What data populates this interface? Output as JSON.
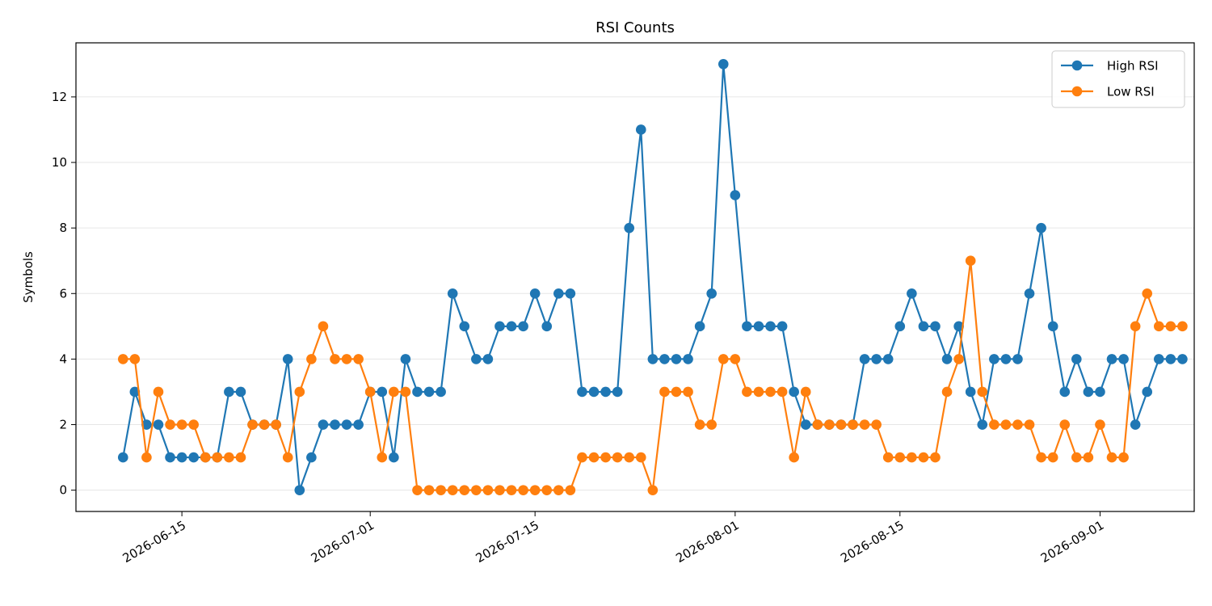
{
  "chart_data": {
    "type": "line",
    "title": "RSI Counts",
    "xlabel": "",
    "ylabel": "Symbols",
    "x_start": "2026-06-10",
    "x_end": "2026-09-05",
    "xlim": [
      "2026-06-06",
      "2026-09-09"
    ],
    "ylim": [
      -0.65,
      13.65
    ],
    "x_ticks": [
      "2026-06-15",
      "2026-07-01",
      "2026-07-15",
      "2026-08-01",
      "2026-08-15",
      "2026-09-01"
    ],
    "y_ticks": [
      0,
      2,
      4,
      6,
      8,
      10,
      12
    ],
    "grid": "horizontal",
    "legend": "top-right",
    "series": [
      {
        "name": "High RSI",
        "color": "#1f77b4",
        "values": [
          1,
          3,
          2,
          2,
          1,
          1,
          1,
          1,
          1,
          3,
          3,
          2,
          2,
          2,
          4,
          0,
          1,
          2,
          2,
          2,
          2,
          3,
          3,
          1,
          4,
          3,
          3,
          3,
          6,
          5,
          4,
          4,
          5,
          5,
          5,
          6,
          5,
          6,
          6,
          3,
          3,
          3,
          3,
          8,
          11,
          4,
          4,
          4,
          4,
          5,
          6,
          13,
          9,
          5,
          5,
          5,
          5,
          3,
          2,
          2,
          2,
          2,
          2,
          4,
          4,
          4,
          5,
          6,
          5,
          5,
          4,
          5,
          3,
          2,
          4,
          4,
          4,
          6,
          8,
          5,
          3,
          4,
          3,
          3,
          4,
          4,
          2,
          3,
          4,
          4,
          4
        ]
      },
      {
        "name": "Low RSI",
        "color": "#ff7f0e",
        "values": [
          4,
          4,
          1,
          3,
          2,
          2,
          2,
          1,
          1,
          1,
          1,
          2,
          2,
          2,
          1,
          3,
          4,
          5,
          4,
          4,
          4,
          3,
          1,
          3,
          3,
          0,
          0,
          0,
          0,
          0,
          0,
          0,
          0,
          0,
          0,
          0,
          0,
          0,
          0,
          1,
          1,
          1,
          1,
          1,
          1,
          0,
          3,
          3,
          3,
          2,
          2,
          4,
          4,
          3,
          3,
          3,
          3,
          1,
          3,
          2,
          2,
          2,
          2,
          2,
          2,
          1,
          1,
          1,
          1,
          1,
          3,
          4,
          7,
          3,
          2,
          2,
          2,
          2,
          1,
          1,
          2,
          1,
          1,
          2,
          1,
          1,
          5,
          6,
          5,
          5,
          5
        ]
      }
    ]
  }
}
